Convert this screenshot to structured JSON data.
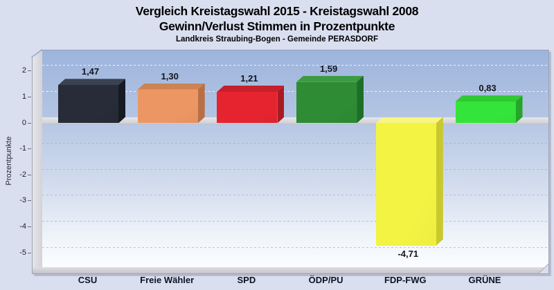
{
  "title": {
    "line1": "Vergleich Kreistagswahl 2015 - Kreistagswahl 2008",
    "line2": "Gewinn/Verlust Stimmen in Prozentpunkte",
    "subtitle": "Landkreis Straubing-Bogen - Gemeinde PERASDORF"
  },
  "chart_data": {
    "type": "bar",
    "style": "3d-columns",
    "title": "Vergleich Kreistagswahl 2015 - Kreistagswahl 2008 / Gewinn/Verlust Stimmen in Prozentpunkte",
    "subtitle": "Landkreis Straubing-Bogen - Gemeinde PERASDORF",
    "categories": [
      "CSU",
      "Freie Wähler",
      "SPD",
      "ÖDP/PU",
      "FDP-FWG",
      "GRÜNE"
    ],
    "values": [
      1.47,
      1.3,
      1.21,
      1.59,
      -4.71,
      0.83
    ],
    "value_labels": [
      "1,47",
      "1,30",
      "1,21",
      "1,59",
      "-4,71",
      "0,83"
    ],
    "bar_colors": [
      {
        "party": "CSU",
        "front": "#272c38",
        "top": "#3a4252",
        "side": "#161a22"
      },
      {
        "party": "Freie Wähler",
        "front": "#ec9763",
        "top": "#cd8354",
        "side": "#b96f46"
      },
      {
        "party": "SPD",
        "front": "#e62430",
        "top": "#c6202b",
        "side": "#a81b23"
      },
      {
        "party": "ÖDP/PU",
        "front": "#2e8c34",
        "top": "#3d9a44",
        "side": "#1e6f26"
      },
      {
        "party": "FDP-FWG",
        "front": "#f3f343",
        "top": "#f7f780",
        "side": "#c9c92d"
      },
      {
        "party": "GRÜNE",
        "front": "#35e43a",
        "top": "#2ec933",
        "side": "#26a42b"
      }
    ],
    "xlabel": "",
    "ylabel": "Prozentpunkte",
    "y_ticks": [
      {
        "label": "2",
        "value": 2
      },
      {
        "label": "1",
        "value": 1
      },
      {
        "label": "0",
        "value": 0
      },
      {
        "label": "-1",
        "value": -1
      },
      {
        "label": "-2",
        "value": -2
      },
      {
        "label": "-3",
        "value": -3
      },
      {
        "label": "-4",
        "value": -4
      },
      {
        "label": "-5",
        "value": -5
      }
    ],
    "ylim": [
      -5.8,
      2.8
    ],
    "grid": "horizontal-dashed",
    "legend": "none",
    "number_format": "german-decimal-comma"
  },
  "colors": {
    "page_background": "#dadff0",
    "plot_gradient_top": "#9db4dc",
    "plot_gradient_bottom": "#fdfeff",
    "wall_gray": "#d8d8dc",
    "text": "#000000"
  }
}
